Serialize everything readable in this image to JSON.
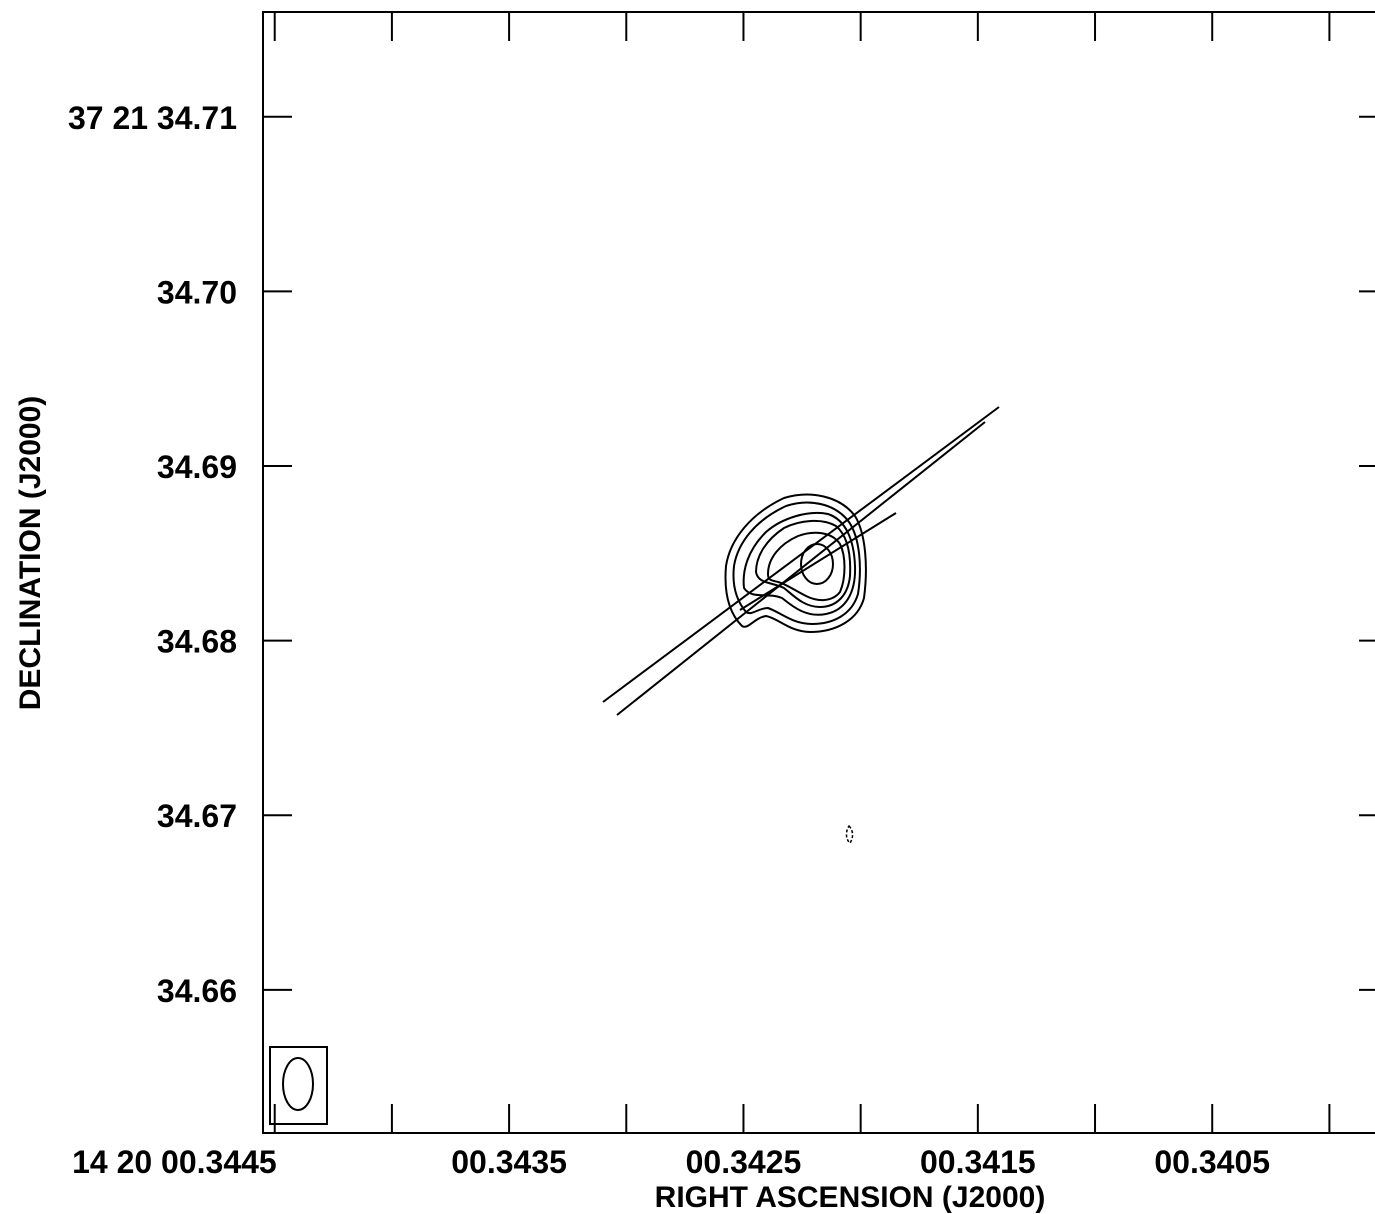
{
  "chart_data": {
    "type": "contour",
    "xlabel": "RIGHT ASCENSION (J2000)",
    "ylabel": "DECLINATION (J2000)",
    "x_ticks": [
      {
        "value": 0.3445,
        "label": "14 20 00.3445"
      },
      {
        "value": 0.344,
        "label": ""
      },
      {
        "value": 0.3435,
        "label": "00.3435"
      },
      {
        "value": 0.343,
        "label": ""
      },
      {
        "value": 0.3425,
        "label": "00.3425"
      },
      {
        "value": 0.342,
        "label": ""
      },
      {
        "value": 0.3415,
        "label": "00.3415"
      },
      {
        "value": 0.341,
        "label": ""
      },
      {
        "value": 0.3405,
        "label": "00.3405"
      },
      {
        "value": 0.34,
        "label": ""
      }
    ],
    "y_ticks": [
      {
        "value": 34.71,
        "label": "37 21 34.71"
      },
      {
        "value": 34.7,
        "label": "34.70"
      },
      {
        "value": 34.69,
        "label": "34.69"
      },
      {
        "value": 34.68,
        "label": "34.68"
      },
      {
        "value": 34.67,
        "label": "34.67"
      },
      {
        "value": 34.66,
        "label": "34.66"
      }
    ],
    "xlim": [
      0.34455,
      0.33975
    ],
    "ylim": [
      34.6518,
      34.716
    ],
    "source_peak": {
      "ra": 0.34214,
      "dec": 34.684
    },
    "contour_levels": 6,
    "beam": "ellipse, lower-left corner"
  }
}
